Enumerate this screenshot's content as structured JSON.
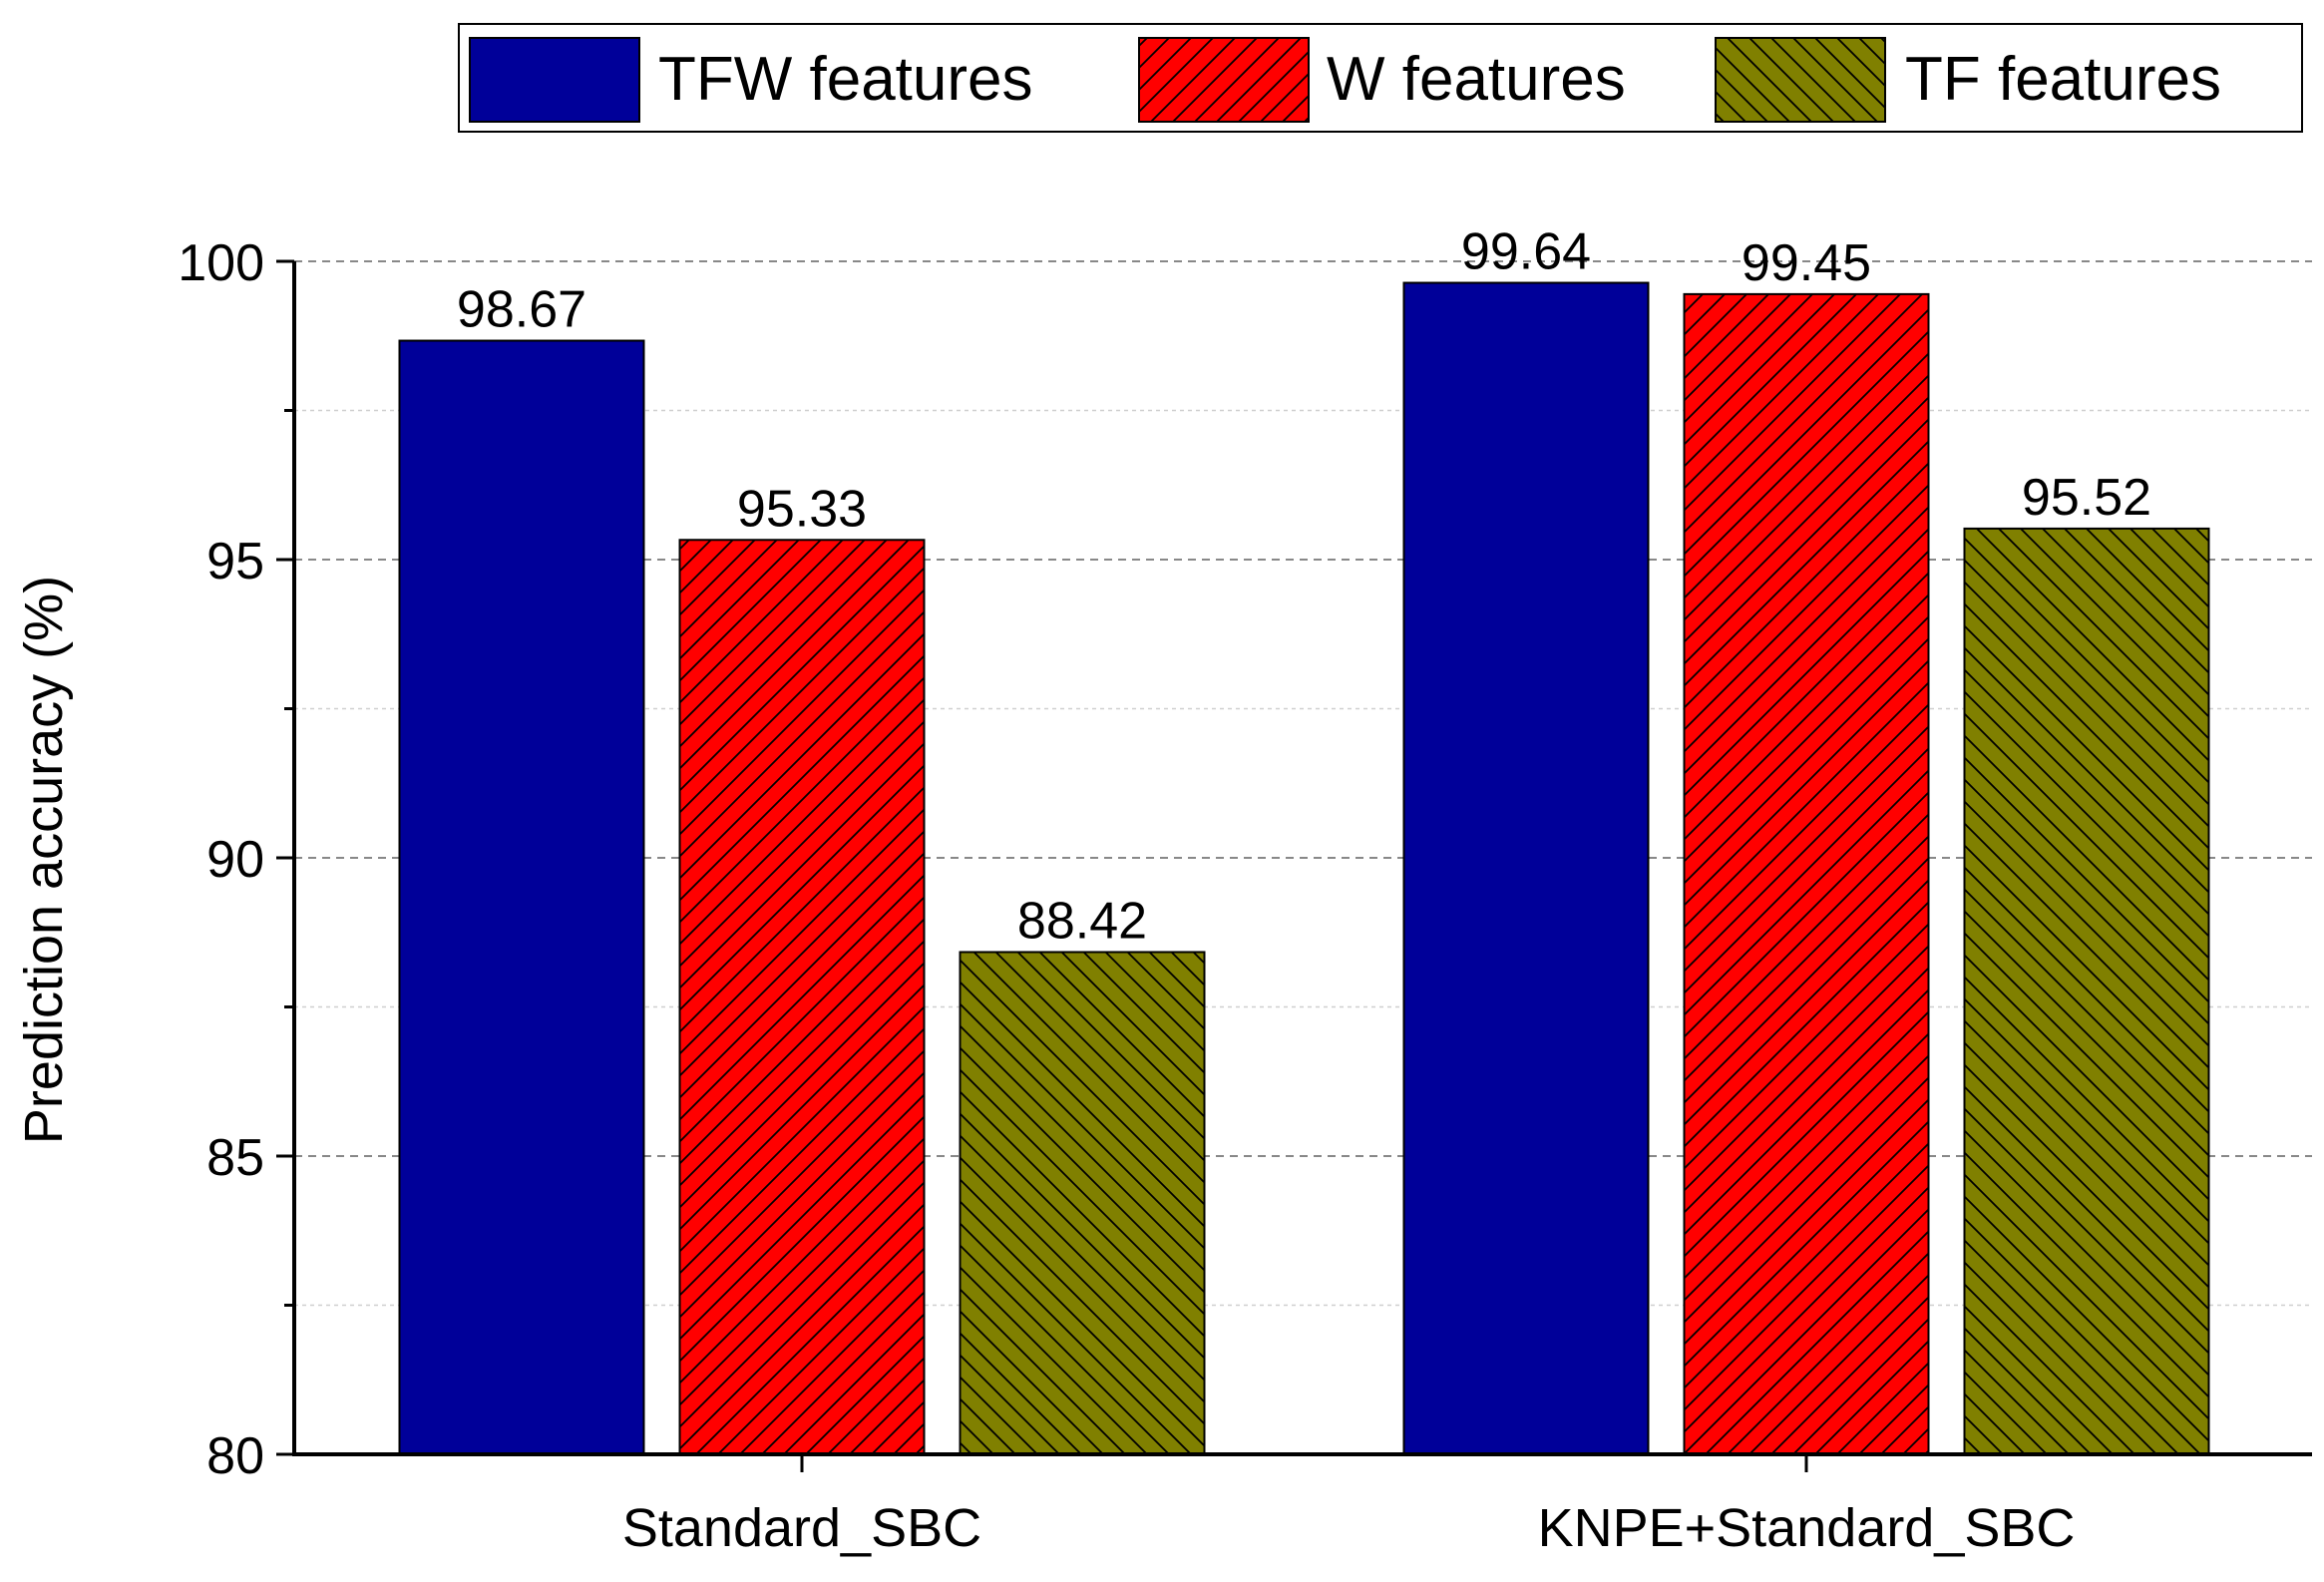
{
  "chart_data": {
    "type": "bar",
    "categories": [
      "Standard_SBC",
      "KNPE+Standard_SBC"
    ],
    "series": [
      {
        "name": "TFW features",
        "values": [
          98.67,
          99.64
        ],
        "color": "#000099",
        "pattern": "solid"
      },
      {
        "name": "W features",
        "values": [
          95.33,
          99.45
        ],
        "color": "#ff0000",
        "pattern": "forward-hatch"
      },
      {
        "name": "TF features",
        "values": [
          88.42,
          95.52
        ],
        "color": "#808000",
        "pattern": "back-hatch"
      }
    ],
    "data_labels": [
      [
        "98.67",
        "99.64"
      ],
      [
        "95.33",
        "99.45"
      ],
      [
        "88.42",
        "95.52"
      ]
    ],
    "ylabel": "Prediction accuracy (%)",
    "xlabel": "",
    "ylim": [
      80,
      100
    ],
    "yticks": [
      80,
      85,
      90,
      95,
      100
    ],
    "ytick_labels": [
      "80",
      "85",
      "90",
      "95",
      "100"
    ],
    "grid": true,
    "legend_position": "top"
  }
}
